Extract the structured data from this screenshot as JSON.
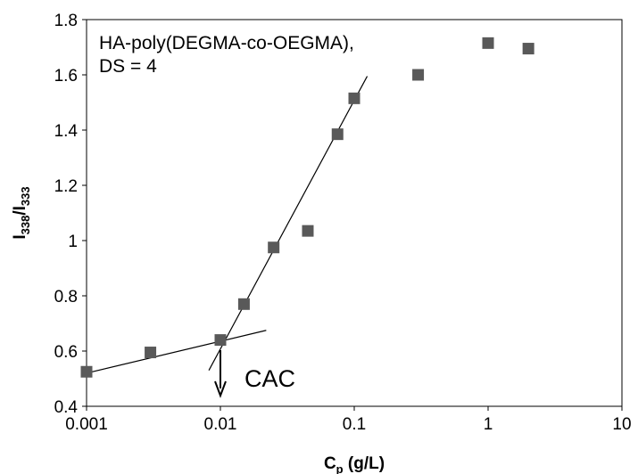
{
  "chart_data": {
    "type": "scatter",
    "title": "",
    "x_scale": "log",
    "xlim": [
      0.001,
      10
    ],
    "ylim": [
      0.4,
      1.8
    ],
    "grid": false,
    "x_ticks": [
      "0.001",
      "0.01",
      "0.1",
      "1",
      "10"
    ],
    "y_ticks": [
      "0.4",
      "0.6",
      "0.8",
      "1",
      "1.2",
      "1.4",
      "1.6",
      "1.8"
    ],
    "xlabel_main": "C",
    "xlabel_sub": "p",
    "xlabel_rest": " (g/L)",
    "ylabel_main": "I",
    "ylabel_sub1": "338",
    "ylabel_mid": "/I",
    "ylabel_sub2": "333",
    "marker_color": "#595959",
    "annotation_line1": "HA-poly(DEGMA-co-OEGMA),",
    "annotation_line2": "DS = 4",
    "cac_label": "CAC",
    "cac_x": 0.01,
    "points": [
      {
        "x": 0.001,
        "y": 0.525
      },
      {
        "x": 0.003,
        "y": 0.595
      },
      {
        "x": 0.01,
        "y": 0.64
      },
      {
        "x": 0.015,
        "y": 0.77
      },
      {
        "x": 0.025,
        "y": 0.975
      },
      {
        "x": 0.045,
        "y": 1.035
      },
      {
        "x": 0.075,
        "y": 1.385
      },
      {
        "x": 0.1,
        "y": 1.515
      },
      {
        "x": 0.3,
        "y": 1.6
      },
      {
        "x": 1.0,
        "y": 1.715
      },
      {
        "x": 2.0,
        "y": 1.695
      }
    ],
    "fit_lines": [
      {
        "x": [
          0.001,
          0.022
        ],
        "y": [
          0.52,
          0.675
        ]
      },
      {
        "x": [
          0.0082,
          0.125
        ],
        "y": [
          0.53,
          1.595
        ]
      }
    ]
  }
}
